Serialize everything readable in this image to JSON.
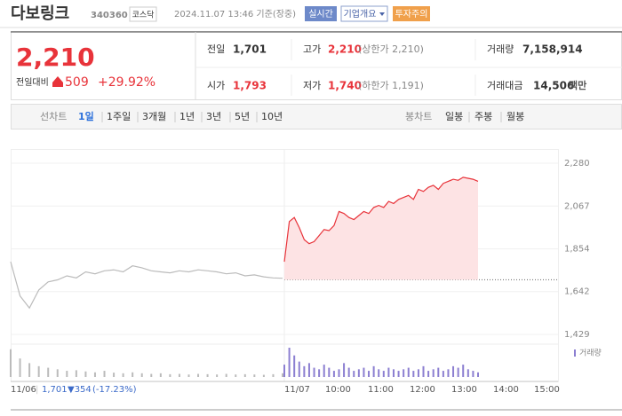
{
  "header": {
    "name": "다보링크",
    "code": "340360",
    "market": "코스닥",
    "time": "2024.11.07 13:46 기준(장중)",
    "badges": [
      "실시간",
      "기업개요",
      "투자주의"
    ]
  },
  "price": {
    "current": "2,210",
    "change_label": "전일대비",
    "change": "509",
    "change_pct": "+29.92%"
  },
  "summary": {
    "rows": [
      [
        {
          "label": "전일",
          "value": "1,701"
        },
        {
          "label": "고가",
          "value": "2,210",
          "note": "(상한가 2,210)"
        },
        {
          "label": "거래량",
          "value": "7,158,914"
        }
      ],
      [
        {
          "label": "시가",
          "value": "1,793"
        },
        {
          "label": "저가",
          "value": "1,740",
          "note": "(하한가 1,191)"
        },
        {
          "label": "거래대금",
          "value": "14,506",
          "unit": "백만"
        }
      ]
    ]
  },
  "tabs": {
    "line_label": "선차트",
    "line": [
      "1일",
      "1주일",
      "3개월",
      "1년",
      "3년",
      "5년",
      "10년"
    ],
    "candle_label": "봉차트",
    "candle": [
      "일봉",
      "주봉",
      "월봉"
    ]
  },
  "chart_data": {
    "type": "line",
    "ylim": [
      1429,
      2280
    ],
    "yticks": [
      {
        "value": 1429,
        "label": "1,429"
      },
      {
        "value": 1642,
        "label": "1,642"
      },
      {
        "value": 1854,
        "label": "1,854"
      },
      {
        "value": 2067,
        "label": "2,067"
      },
      {
        "value": 2280,
        "label": "2,280"
      }
    ],
    "reference": 1701,
    "series": [
      {
        "color": "#bbbbbb",
        "values": [
          1790,
          1620,
          1560,
          1650,
          1690,
          1700,
          1720,
          1710,
          1740,
          1730,
          1745,
          1750,
          1740,
          1770,
          1760,
          1745,
          1740,
          1735,
          1745,
          1740,
          1750,
          1745,
          1740,
          1730,
          1735,
          1720,
          1725,
          1715,
          1710,
          1708
        ]
      },
      {
        "color": "#e8333a",
        "fill": "#fde3e4",
        "values": [
          1790,
          1990,
          2010,
          1960,
          1900,
          1880,
          1890,
          1920,
          1950,
          1945,
          1970,
          2040,
          2030,
          2010,
          2000,
          2020,
          2040,
          2030,
          2060,
          2070,
          2060,
          2090,
          2080,
          2100,
          2110,
          2120,
          2100,
          2150,
          2140,
          2160,
          2170,
          2150,
          2180,
          2190,
          2200,
          2195,
          2210,
          2205,
          2200,
          2190
        ]
      }
    ],
    "volume": {
      "name": "거래량",
      "colors": [
        "#bbbbbb",
        "#8c7fd1"
      ],
      "series": [
        [
          90,
          60,
          45,
          35,
          30,
          25,
          20,
          22,
          18,
          15,
          20,
          14,
          12,
          15,
          12,
          10,
          12,
          9,
          10,
          8,
          10,
          9,
          8,
          10,
          8,
          9,
          8,
          7,
          9,
          12
        ],
        [
          40,
          95,
          70,
          50,
          35,
          45,
          30,
          25,
          40,
          30,
          20,
          25,
          45,
          30,
          20,
          25,
          30,
          20,
          35,
          25,
          20,
          30,
          25,
          20,
          25,
          30,
          20,
          25,
          35,
          20,
          25,
          30,
          20,
          25,
          35,
          30,
          40,
          25,
          20,
          15
        ]
      ]
    },
    "xticks": [
      "11/06",
      "11/07",
      "10:00",
      "11:00",
      "12:00",
      "13:00",
      "14:00",
      "15:00"
    ],
    "grid": true
  },
  "footer": {
    "close": "1,701",
    "change": "▼354",
    "change_pct": "(-17.23%)"
  }
}
